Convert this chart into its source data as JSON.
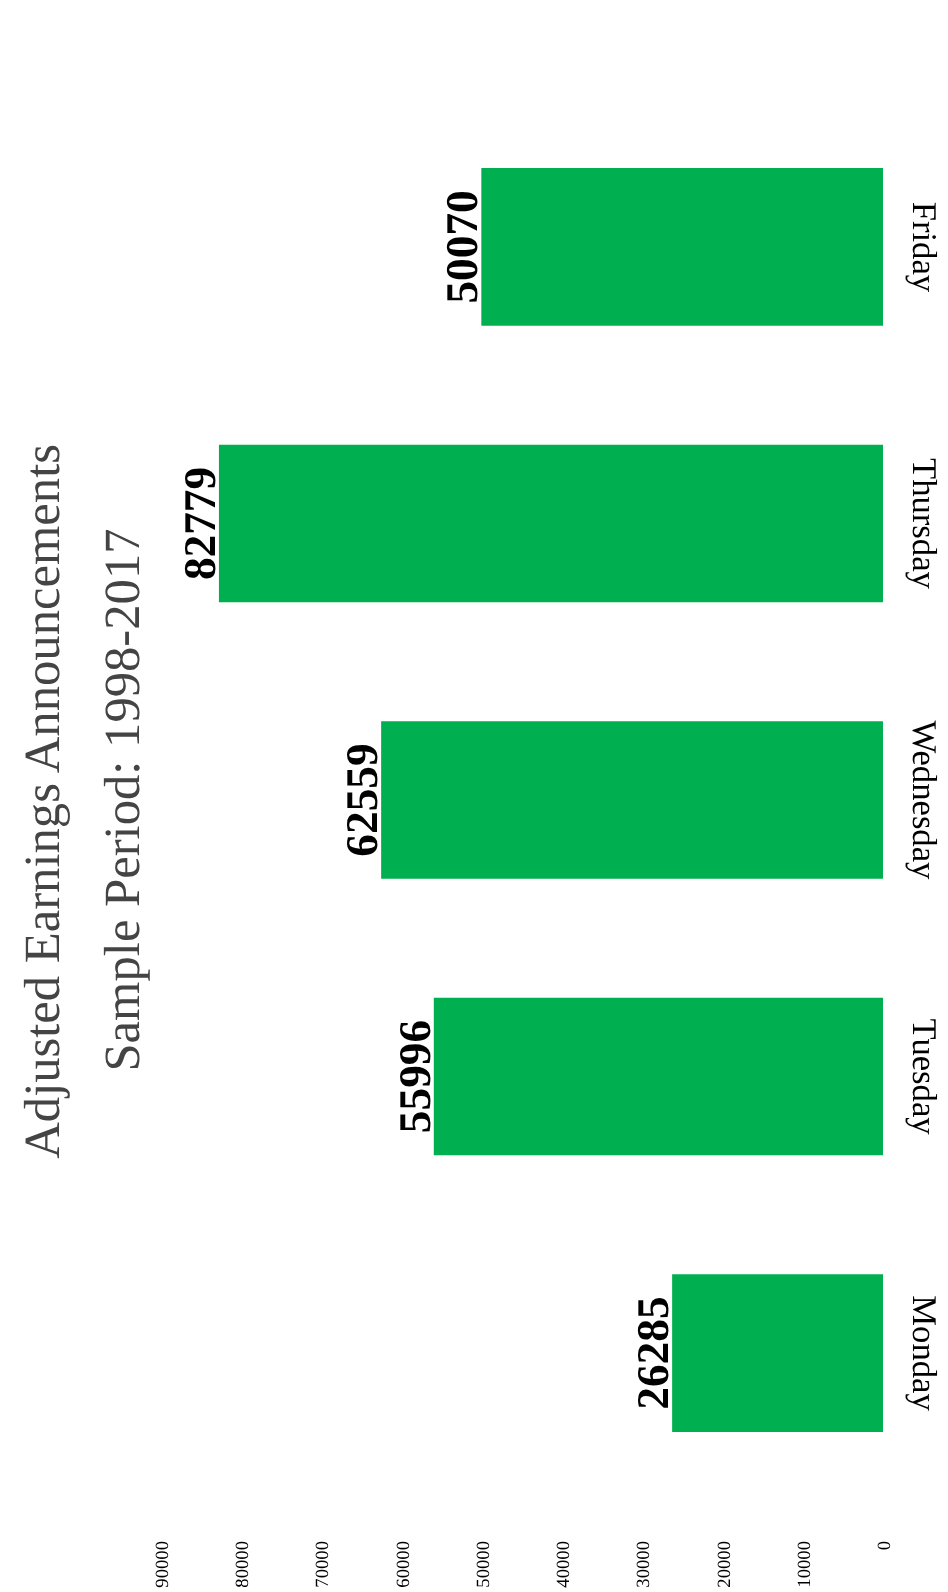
{
  "chart_data": {
    "type": "bar",
    "orientation": "horizontal",
    "title": "Adjusted Earnings Announcements",
    "subtitle": "Sample Period: 1998-2017",
    "categories": [
      "Friday",
      "Thursday",
      "Wednesday",
      "Tuesday",
      "Monday"
    ],
    "values": [
      50070,
      82779,
      62559,
      55996,
      26285
    ],
    "color": "#00b050",
    "xlim": [
      90000,
      0
    ],
    "xticks": [
      0,
      10000,
      20000,
      30000,
      40000,
      50000,
      60000,
      70000,
      80000,
      90000
    ],
    "data_labels": true,
    "grid": false
  }
}
